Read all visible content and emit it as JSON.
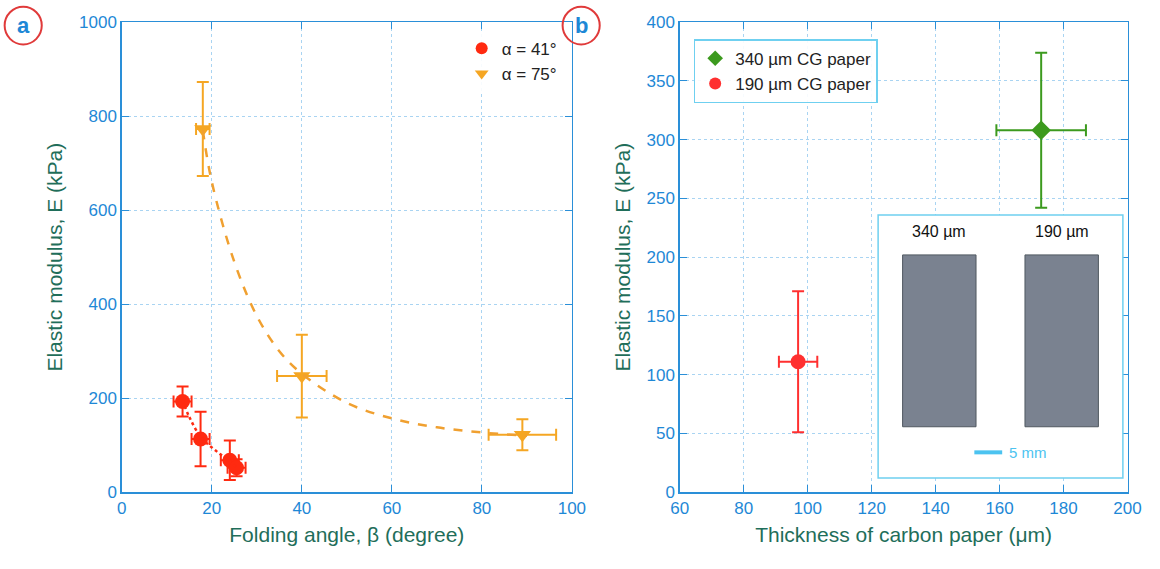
{
  "chart_data": [
    {
      "type": "scatter",
      "label": "a",
      "x_label": "Folding angle, β (degree)",
      "y_label": "Elastic modulus, E (kPa)",
      "xlim": [
        0,
        100
      ],
      "xticks": [
        0,
        20,
        40,
        60,
        80,
        100
      ],
      "ylim": [
        0,
        1000
      ],
      "yticks": [
        0,
        200,
        400,
        600,
        800,
        1000
      ],
      "grid": true,
      "legend": "upper right",
      "series": [
        {
          "name": "α = 41°",
          "color": "#ff2a10",
          "marker": "circle",
          "x": [
            13.5,
            17.5,
            24,
            25.5
          ],
          "values": [
            193,
            113,
            68,
            52
          ],
          "x_err": [
            2,
            2,
            2,
            2
          ],
          "y_err": [
            32,
            58,
            42,
            18
          ]
        },
        {
          "name": "α = 75°",
          "color": "#f5a623",
          "marker": "triangle-down",
          "x": [
            18,
            40,
            89
          ],
          "values": [
            773,
            247,
            122
          ],
          "x_err": [
            1.5,
            5.5,
            7.5
          ],
          "y_err": [
            100,
            88,
            33
          ]
        },
        {
          "color": "#ff2a10",
          "marker": "none",
          "line_style": "dot",
          "x": [
            13.5,
            15,
            17.5,
            20,
            22,
            24,
            25.5
          ],
          "values": [
            195,
            160,
            118,
            95,
            80,
            66,
            52
          ]
        },
        {
          "color": "#f0a030",
          "marker": "none",
          "line_style": "dash",
          "x": [
            18,
            20,
            25,
            30,
            35,
            40,
            50,
            60,
            70,
            80,
            90
          ],
          "values": [
            770,
            660,
            490,
            375,
            300,
            252,
            190,
            157,
            138,
            127,
            120
          ]
        }
      ]
    },
    {
      "type": "scatter",
      "label": "b",
      "x_label": "Thickness of carbon paper (μm)",
      "y_label": "Elastic modulus, E (kPa)",
      "xlim": [
        60,
        200
      ],
      "xticks": [
        60,
        80,
        100,
        120,
        140,
        160,
        180,
        200
      ],
      "ylim": [
        0,
        400
      ],
      "yticks": [
        0,
        50,
        100,
        150,
        200,
        250,
        300,
        350,
        400
      ],
      "grid": true,
      "legend": "upper left",
      "series": [
        {
          "name": "340 µm CG paper",
          "color": "#3c9a1e",
          "marker": "diamond",
          "x": [
            173
          ],
          "values": [
            308
          ],
          "x_err": [
            14
          ],
          "y_err": [
            66
          ]
        },
        {
          "name": "190 µm CG paper",
          "color": "#ff3030",
          "marker": "circle",
          "x": [
            97
          ],
          "values": [
            111
          ],
          "x_err": [
            6
          ],
          "y_err": [
            60
          ]
        }
      ],
      "inset": {
        "labels": [
          "340 µm",
          "190 µm"
        ],
        "scale_bar": "5 mm"
      }
    }
  ]
}
